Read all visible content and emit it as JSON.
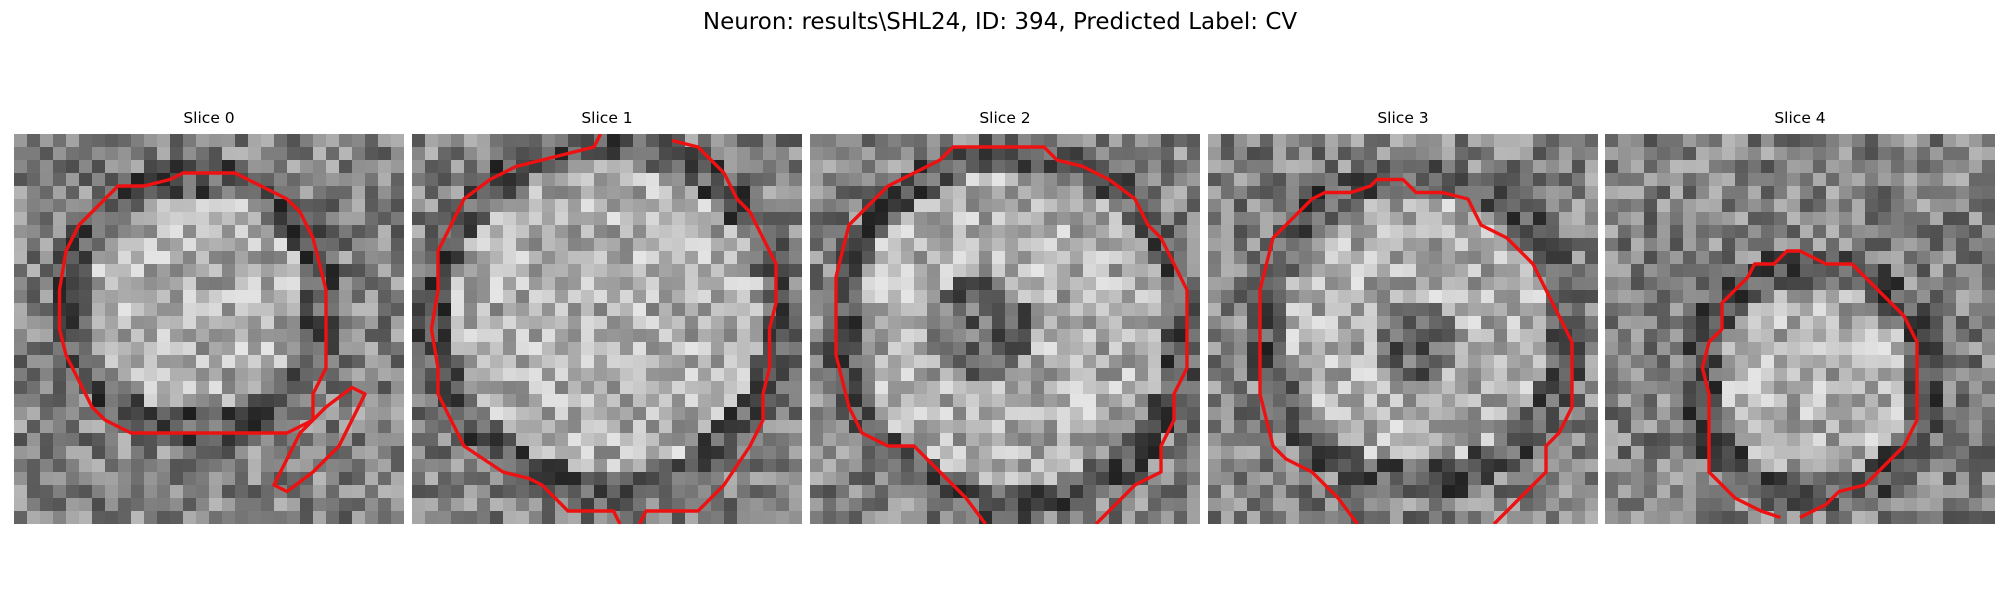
{
  "figure": {
    "title": "Neuron: results\\SHL24, ID: 394, Predicted Label: CV",
    "contour_color": "#ee1111"
  },
  "slices": [
    {
      "label": "Slice 0"
    },
    {
      "label": "Slice 1"
    },
    {
      "label": "Slice 2"
    },
    {
      "label": "Slice 3"
    },
    {
      "label": "Slice 4"
    }
  ]
}
